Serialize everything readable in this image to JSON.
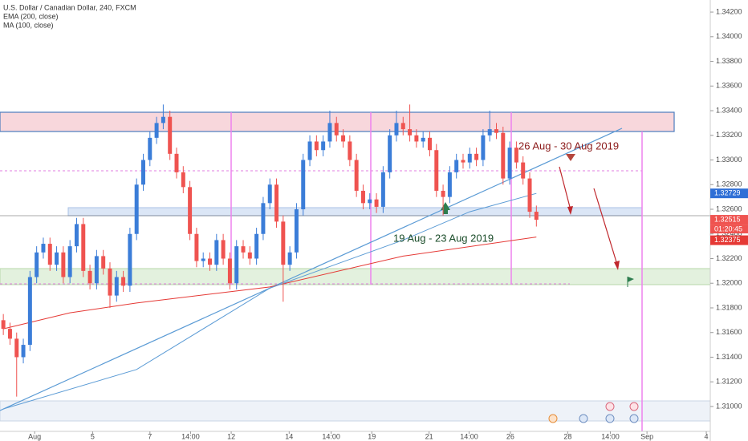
{
  "chart_data": {
    "type": "candlestick",
    "title": "U.S. Dollar / Canadian Dollar, 240, FXCM",
    "indicators": [
      "EMA (200, close)",
      "MA (100, close)"
    ],
    "up_color": "#3b7dd8",
    "down_color": "#ef5350",
    "open": [
      1.317,
      1.3163,
      1.3155,
      1.314,
      1.315,
      1.3205,
      1.3225,
      1.3232,
      1.3215,
      1.3225,
      1.3205,
      1.323,
      1.3248,
      1.321,
      1.32,
      1.3222,
      1.3212,
      1.319,
      1.3205,
      1.3198,
      1.324,
      1.328,
      1.33,
      1.3318,
      1.333,
      1.3335,
      1.3305,
      1.329,
      1.3278,
      1.324,
      1.3218,
      1.322,
      1.3215,
      1.3235,
      1.322,
      1.32,
      1.323,
      1.3225,
      1.322,
      1.324,
      1.3265,
      1.328,
      1.325,
      1.3215,
      1.3225,
      1.326,
      1.33,
      1.3315,
      1.3308,
      1.3315,
      1.333,
      1.332,
      1.3315,
      1.33,
      1.3275,
      1.3265,
      1.3268,
      1.3262,
      1.329,
      1.332,
      1.333,
      1.3325,
      1.332,
      1.3315,
      1.3318,
      1.3308,
      1.3275,
      1.327,
      1.329,
      1.33,
      1.3298,
      1.3305,
      1.33,
      1.332,
      1.3325,
      1.3322,
      1.3285,
      1.331,
      1.3298,
      1.3285,
      1.3258
    ],
    "high": [
      1.3175,
      1.3168,
      1.316,
      1.3155,
      1.321,
      1.323,
      1.3237,
      1.3237,
      1.323,
      1.323,
      1.3235,
      1.3253,
      1.3253,
      1.3215,
      1.3227,
      1.3227,
      1.3217,
      1.321,
      1.321,
      1.3245,
      1.3285,
      1.3305,
      1.3323,
      1.3335,
      1.3345,
      1.334,
      1.331,
      1.3295,
      1.3283,
      1.3245,
      1.3225,
      1.3225,
      1.324,
      1.324,
      1.3225,
      1.3235,
      1.3235,
      1.323,
      1.3245,
      1.327,
      1.3285,
      1.3285,
      1.3255,
      1.323,
      1.3265,
      1.3305,
      1.332,
      1.332,
      1.332,
      1.334,
      1.3335,
      1.3325,
      1.332,
      1.3305,
      1.328,
      1.3273,
      1.3273,
      1.3295,
      1.3325,
      1.334,
      1.3335,
      1.3345,
      1.3325,
      1.3323,
      1.3323,
      1.3313,
      1.328,
      1.3295,
      1.3305,
      1.3305,
      1.331,
      1.331,
      1.3325,
      1.334,
      1.333,
      1.3327,
      1.3315,
      1.3315,
      1.3303,
      1.329,
      1.3263
    ],
    "low": [
      1.3158,
      1.315,
      1.3108,
      1.3135,
      1.3145,
      1.32,
      1.322,
      1.321,
      1.321,
      1.32,
      1.32,
      1.3225,
      1.3205,
      1.3195,
      1.3195,
      1.3207,
      1.318,
      1.3185,
      1.3193,
      1.3193,
      1.3235,
      1.3275,
      1.3295,
      1.3313,
      1.3325,
      1.33,
      1.3285,
      1.3273,
      1.3235,
      1.3213,
      1.3213,
      1.321,
      1.321,
      1.3215,
      1.3195,
      1.3195,
      1.322,
      1.3215,
      1.3215,
      1.3235,
      1.326,
      1.3245,
      1.3185,
      1.321,
      1.322,
      1.3255,
      1.3295,
      1.3303,
      1.3303,
      1.331,
      1.3315,
      1.331,
      1.3295,
      1.327,
      1.326,
      1.326,
      1.3257,
      1.3257,
      1.3285,
      1.3315,
      1.332,
      1.3315,
      1.331,
      1.331,
      1.3303,
      1.327,
      1.3255,
      1.3265,
      1.3285,
      1.3293,
      1.3293,
      1.3295,
      1.3295,
      1.3315,
      1.3317,
      1.328,
      1.328,
      1.3293,
      1.328,
      1.3253,
      1.3246
    ],
    "close": [
      1.3163,
      1.3155,
      1.314,
      1.315,
      1.3205,
      1.3225,
      1.3232,
      1.3215,
      1.3225,
      1.3205,
      1.323,
      1.3248,
      1.321,
      1.32,
      1.3222,
      1.3212,
      1.319,
      1.3205,
      1.3198,
      1.324,
      1.328,
      1.33,
      1.3318,
      1.333,
      1.3335,
      1.3305,
      1.329,
      1.3278,
      1.324,
      1.3218,
      1.322,
      1.3215,
      1.3235,
      1.322,
      1.32,
      1.323,
      1.3225,
      1.322,
      1.324,
      1.3265,
      1.328,
      1.325,
      1.3215,
      1.3225,
      1.326,
      1.33,
      1.3315,
      1.3308,
      1.3315,
      1.333,
      1.332,
      1.3315,
      1.33,
      1.3275,
      1.3265,
      1.3268,
      1.3262,
      1.329,
      1.332,
      1.333,
      1.3325,
      1.332,
      1.3315,
      1.3318,
      1.3308,
      1.3275,
      1.327,
      1.329,
      1.33,
      1.3298,
      1.3305,
      1.33,
      1.332,
      1.3325,
      1.3322,
      1.3285,
      1.331,
      1.3298,
      1.3285,
      1.3258,
      1.32515
    ],
    "series": [
      {
        "name": "EMA (200, close)",
        "color": "#e53935",
        "x": [
          0,
          10,
          20,
          40,
          60,
          80
        ],
        "values": [
          1.3163,
          1.3176,
          1.3184,
          1.3197,
          1.3222,
          1.32375
        ]
      },
      {
        "name": "MA (100, close)",
        "color": "#5b9bd5",
        "x": [
          0,
          20,
          40,
          60,
          70,
          80
        ],
        "values": [
          1.3098,
          1.313,
          1.3196,
          1.3235,
          1.3258,
          1.32729
        ]
      }
    ],
    "countdown": "01:20:45",
    "annotations": [
      "26 Aug - 30 Aug 2019",
      "19 Aug - 23 Aug 2019"
    ],
    "ylim": [
      1.30798,
      1.34298
    ],
    "yticks": [
      {
        "value": 1.31,
        "label": "1.31000"
      },
      {
        "value": 1.312,
        "label": "1.31200"
      },
      {
        "value": 1.314,
        "label": "1.31400"
      },
      {
        "value": 1.316,
        "label": "1.31600"
      },
      {
        "value": 1.318,
        "label": "1.31800"
      },
      {
        "value": 1.32,
        "label": "1.32000"
      },
      {
        "value": 1.322,
        "label": "1.32200"
      },
      {
        "value": 1.324,
        "label": "1.32400"
      },
      {
        "value": 1.326,
        "label": "1.32600"
      },
      {
        "value": 1.328,
        "label": "1.32800"
      },
      {
        "value": 1.33,
        "label": "1.33000"
      },
      {
        "value": 1.332,
        "label": "1.33200"
      },
      {
        "value": 1.334,
        "label": "1.33400"
      },
      {
        "value": 1.336,
        "label": "1.33600"
      },
      {
        "value": 1.338,
        "label": "1.33800"
      },
      {
        "value": 1.34,
        "label": "1.34000"
      },
      {
        "value": 1.342,
        "label": "1.34200"
      }
    ],
    "xlim": [
      -0.5,
      106.1
    ],
    "xticks": [
      {
        "value": 4.7,
        "label": "Aug"
      },
      {
        "value": 13.4,
        "label": "5"
      },
      {
        "value": 22,
        "label": "7"
      },
      {
        "value": 28.1,
        "label": "14:00"
      },
      {
        "value": 34.2,
        "label": "12"
      },
      {
        "value": 42.9,
        "label": "14"
      },
      {
        "value": 49.2,
        "label": "14:00"
      },
      {
        "value": 55.3,
        "label": "19"
      },
      {
        "value": 63.9,
        "label": "21"
      },
      {
        "value": 69.9,
        "label": "14:00"
      },
      {
        "value": 76.1,
        "label": "26"
      },
      {
        "value": 84.7,
        "label": "28"
      },
      {
        "value": 91.1,
        "label": "14:00"
      },
      {
        "value": 96.6,
        "label": "Sep"
      },
      {
        "value": 105.5,
        "label": "4"
      }
    ]
  }
}
